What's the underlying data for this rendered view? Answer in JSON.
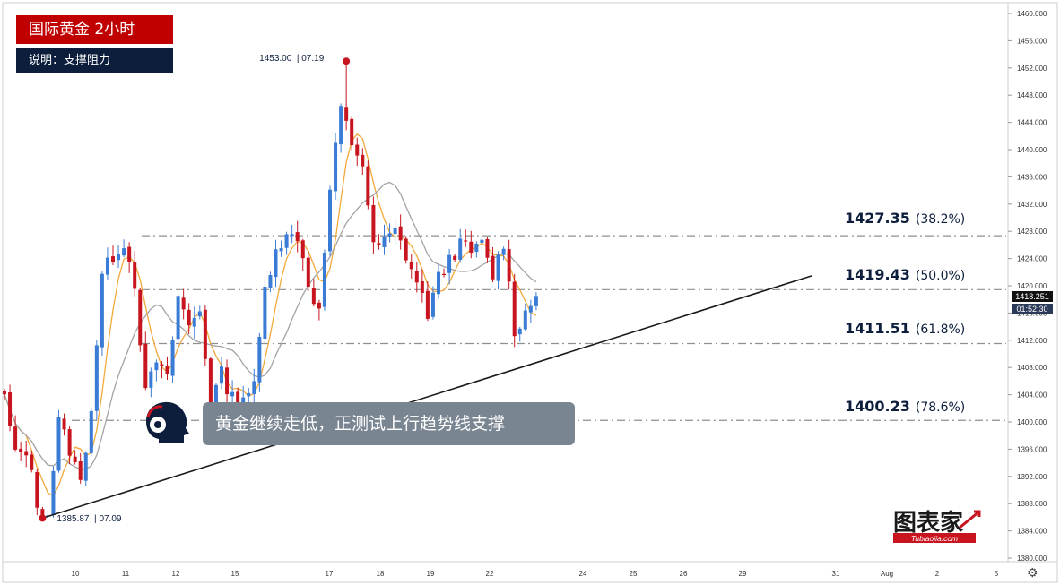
{
  "header": {
    "title": "国际黄金 2小时",
    "subtitle": "说明：支撑阻力"
  },
  "callout": {
    "text": "黄金继续走低，正测试上行趋势线支撑"
  },
  "logo": {
    "text": "图表家",
    "sub": "Tubiaojia.com"
  },
  "colors": {
    "up": "#3a7bd5",
    "down": "#c8141e",
    "ma_fast": "#f2a93b",
    "ma_slow": "#a3a3a3",
    "level": "#8f8f8f",
    "trend": "#1b1b1b",
    "brand_red": "#c00000",
    "navy": "#0c1e3c",
    "price_tag": "#111111",
    "timer_tag": "#2b3a59"
  },
  "annotations": {
    "high": {
      "value": "1453.00",
      "date": "07.19"
    },
    "low": {
      "value": "1385.87",
      "date": "07.09"
    }
  },
  "levels": [
    {
      "value": "1427.35",
      "pct": "(38.2%)"
    },
    {
      "value": "1419.43",
      "pct": "(50.0%)"
    },
    {
      "value": "1411.51",
      "pct": "(61.8%)"
    },
    {
      "value": "1400.23",
      "pct": "(78.6%)"
    }
  ],
  "axis": {
    "current_price": "1418.251",
    "countdown": "01:52:30",
    "settings_icon": "gear-icon"
  },
  "chart_data": {
    "type": "candlestick",
    "title": "国际黄金 2小时",
    "ylim": [
      1380,
      1460
    ],
    "y_ticks": [
      "1380.000",
      "1384.000",
      "1388.000",
      "1392.000",
      "1396.000",
      "1400.000",
      "1404.000",
      "1408.000",
      "1412.000",
      "1416.000",
      "1420.000",
      "1424.000",
      "1428.000",
      "1432.000",
      "1436.000",
      "1440.000",
      "1444.000",
      "1448.000",
      "1452.000",
      "1456.000",
      "1460.000"
    ],
    "x_ticks": [
      "10",
      "11",
      "12",
      "15",
      "17",
      "18",
      "19",
      "22",
      "24",
      "25",
      "26",
      "29",
      "31",
      "Aug",
      "2",
      "5"
    ],
    "grid": false,
    "fib_levels": [
      1427.35,
      1419.43,
      1411.51,
      1400.23
    ],
    "swing_high": {
      "price": 1453.0,
      "date": "07.19"
    },
    "swing_low": {
      "price": 1385.87,
      "date": "07.09"
    },
    "trendline": {
      "from": {
        "date": "07.09",
        "price": 1385.87
      },
      "to": {
        "date": "07.29",
        "price": 1421.5
      }
    },
    "anchors": [
      [
        1403.5,
        1395.0
      ],
      [
        1396.0,
        1388.0
      ],
      [
        1386.5,
        1400.0
      ],
      [
        1396.0,
        1391.0
      ],
      [
        1402.0,
        1421.5
      ],
      [
        1424.5,
        1426.5
      ],
      [
        1420.5,
        1404.0
      ],
      [
        1409.0,
        1406.0
      ],
      [
        1418.5,
        1414.0
      ],
      [
        1416.5,
        1403.0
      ],
      [
        1407.0,
        1403.5
      ],
      [
        1404.0,
        1405.0
      ],
      [
        1419.5,
        1426.0
      ],
      [
        1427.0,
        1427.5
      ],
      [
        1420.5,
        1416.0
      ],
      [
        1434.0,
        1446.0
      ],
      [
        1441.0,
        1438.0
      ],
      [
        1425.5,
        1426.5
      ],
      [
        1428.0,
        1424.5
      ],
      [
        1420.5,
        1416.0
      ],
      [
        1421.0,
        1424.0
      ],
      [
        1426.0,
        1425.0
      ],
      [
        1426.0,
        1421.5
      ],
      [
        1426.5,
        1413.5
      ],
      [
        1416.0,
        1418.5
      ]
    ]
  }
}
